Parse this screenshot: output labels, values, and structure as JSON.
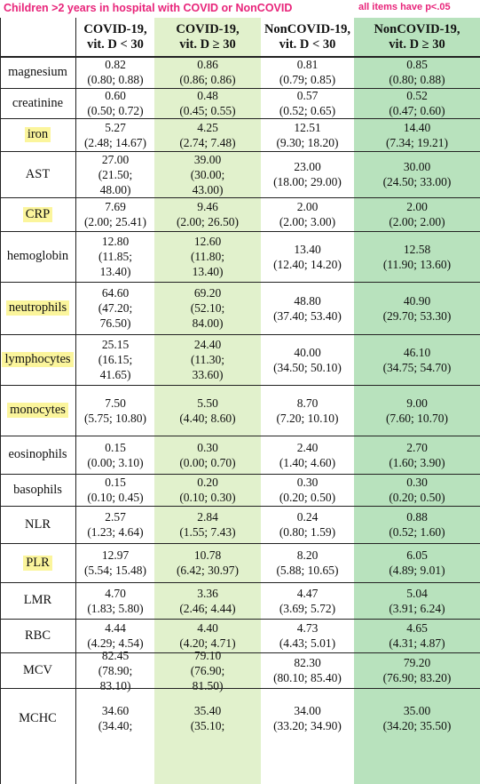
{
  "banner": {
    "title": "Children >2 years in hospital with COVID or NonCOVID",
    "note": "all items have p<.05"
  },
  "headers": [
    [
      "COVID-19,",
      "vit. D < 30"
    ],
    [
      "COVID-19,",
      "vit. D ≥ 30"
    ],
    [
      "NonCOVID-19,",
      "vit. D < 30"
    ],
    [
      "NonCOVID-19,",
      "vit. D ≥ 30"
    ]
  ],
  "rows": [
    {
      "label": "magnesium",
      "highlight": false,
      "cells": [
        [
          "0.82",
          "(0.80; 0.88)"
        ],
        [
          "0.86",
          "(0.86; 0.86)"
        ],
        [
          "0.81",
          "(0.79; 0.85)"
        ],
        [
          "0.85",
          "(0.80; 0.88)"
        ]
      ]
    },
    {
      "label": "creatinine",
      "highlight": false,
      "cells": [
        [
          "0.60",
          "(0.50; 0.72)"
        ],
        [
          "0.48",
          "(0.45; 0.55)"
        ],
        [
          "0.57",
          "(0.52; 0.65)"
        ],
        [
          "0.52",
          "(0.47; 0.60)"
        ]
      ]
    },
    {
      "label": "iron",
      "highlight": true,
      "cells": [
        [
          "5.27",
          "(2.48; 14.67)"
        ],
        [
          "4.25",
          "(2.74; 7.48)"
        ],
        [
          "12.51",
          "(9.30; 18.20)"
        ],
        [
          "14.40",
          "(7.34; 19.21)"
        ]
      ]
    },
    {
      "label": "AST",
      "highlight": false,
      "cells": [
        [
          "27.00",
          "(21.50;",
          "48.00)"
        ],
        [
          "39.00",
          "(30.00;",
          "43.00)"
        ],
        [
          "23.00",
          "(18.00; 29.00)"
        ],
        [
          "30.00",
          "(24.50; 33.00)"
        ]
      ]
    },
    {
      "label": "CRP",
      "highlight": true,
      "cells": [
        [
          "7.69",
          "(2.00; 25.41)"
        ],
        [
          "9.46",
          "(2.00; 26.50)"
        ],
        [
          "2.00",
          "(2.00; 3.00)"
        ],
        [
          "2.00",
          "(2.00; 2.00)"
        ]
      ]
    },
    {
      "label": "hemoglobin",
      "highlight": false,
      "cells": [
        [
          "12.80",
          "(11.85;",
          "13.40)"
        ],
        [
          "12.60",
          "(11.80;",
          "13.40)"
        ],
        [
          "13.40",
          "(12.40; 14.20)"
        ],
        [
          "12.58",
          "(11.90; 13.60)"
        ]
      ]
    },
    {
      "label": "neutrophils",
      "highlight": true,
      "cells": [
        [
          "64.60",
          "(47.20;",
          "76.50)"
        ],
        [
          "69.20",
          "(52.10;",
          "84.00)"
        ],
        [
          "48.80",
          "(37.40; 53.40)"
        ],
        [
          "40.90",
          "(29.70; 53.30)"
        ]
      ]
    },
    {
      "label": "lymphocytes",
      "highlight": true,
      "cells": [
        [
          "25.15",
          "(16.15;",
          "41.65)"
        ],
        [
          "24.40",
          "(11.30;",
          "33.60)"
        ],
        [
          "40.00",
          "(34.50; 50.10)"
        ],
        [
          "46.10",
          "(34.75; 54.70)"
        ]
      ]
    },
    {
      "label": "monocytes",
      "highlight": true,
      "cells": [
        [
          "7.50",
          "(5.75; 10.80)"
        ],
        [
          "5.50",
          "(4.40; 8.60)"
        ],
        [
          "8.70",
          "(7.20; 10.10)"
        ],
        [
          "9.00",
          "(7.60; 10.70)"
        ]
      ]
    },
    {
      "label": "eosinophils",
      "highlight": false,
      "cells": [
        [
          "0.15",
          "(0.00; 3.10)"
        ],
        [
          "0.30",
          "(0.00; 0.70)"
        ],
        [
          "2.40",
          "(1.40; 4.60)"
        ],
        [
          "2.70",
          "(1.60; 3.90)"
        ]
      ]
    },
    {
      "label": "basophils",
      "highlight": false,
      "cells": [
        [
          "0.15",
          "(0.10; 0.45)"
        ],
        [
          "0.20",
          "(0.10; 0.30)"
        ],
        [
          "0.30",
          "(0.20; 0.50)"
        ],
        [
          "0.30",
          "(0.20; 0.50)"
        ]
      ]
    },
    {
      "label": "NLR",
      "highlight": false,
      "cells": [
        [
          "2.57",
          "(1.23; 4.64)"
        ],
        [
          "2.84",
          "(1.55; 7.43)"
        ],
        [
          "0.24",
          "(0.80; 1.59)"
        ],
        [
          "0.88",
          "(0.52; 1.60)"
        ]
      ]
    },
    {
      "label": "PLR",
      "highlight": true,
      "cells": [
        [
          "12.97",
          "(5.54; 15.48)"
        ],
        [
          "10.78",
          "(6.42; 30.97)"
        ],
        [
          "8.20",
          "(5.88; 10.65)"
        ],
        [
          "6.05",
          "(4.89; 9.01)"
        ]
      ]
    },
    {
      "label": "LMR",
      "highlight": false,
      "cells": [
        [
          "4.70",
          "(1.83; 5.80)"
        ],
        [
          "3.36",
          "(2.46; 4.44)"
        ],
        [
          "4.47",
          "(3.69; 5.72)"
        ],
        [
          "5.04",
          "(3.91; 6.24)"
        ]
      ]
    },
    {
      "label": "RBC",
      "highlight": false,
      "cells": [
        [
          "4.44",
          "(4.29; 4.54)"
        ],
        [
          "4.40",
          "(4.20; 4.71)"
        ],
        [
          "4.73",
          "(4.43; 5.01)"
        ],
        [
          "4.65",
          "(4.31; 4.87)"
        ]
      ]
    },
    {
      "label": "MCV",
      "highlight": false,
      "cells": [
        [
          "82.45",
          "(78.90;",
          "83.10)"
        ],
        [
          "79.10",
          "(76.90;",
          "81.50)"
        ],
        [
          "82.30",
          "(80.10; 85.40)"
        ],
        [
          "79.20",
          "(76.90; 83.20)"
        ]
      ]
    },
    {
      "label": "MCHC",
      "highlight": false,
      "cells": [
        [
          "34.60",
          "(34.40;"
        ],
        [
          "35.40",
          "(35.10;"
        ],
        [
          "34.00",
          "(33.20; 34.90)"
        ],
        [
          "35.00",
          "(34.20; 35.50)"
        ]
      ]
    }
  ]
}
